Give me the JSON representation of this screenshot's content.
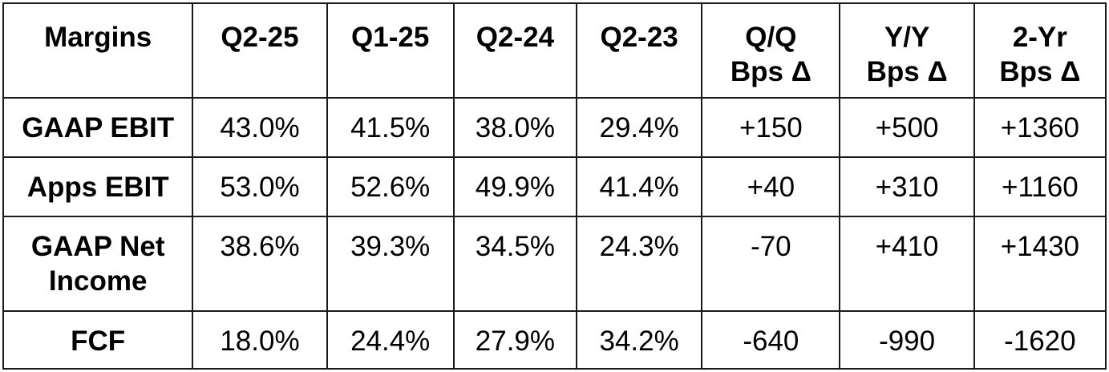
{
  "table": {
    "headers": [
      [
        "Margins"
      ],
      [
        "Q2-25"
      ],
      [
        "Q1-25"
      ],
      [
        "Q2-24"
      ],
      [
        "Q2-23"
      ],
      [
        "Q/Q",
        "Bps Δ"
      ],
      [
        "Y/Y",
        "Bps Δ"
      ],
      [
        "2-Yr",
        "Bps Δ"
      ]
    ],
    "rows": [
      {
        "label": [
          "GAAP EBIT"
        ],
        "cells": [
          "43.0%",
          "41.5%",
          "38.0%",
          "29.4%",
          "+150",
          "+500",
          "+1360"
        ]
      },
      {
        "label": [
          "Apps EBIT"
        ],
        "cells": [
          "53.0%",
          "52.6%",
          "49.9%",
          "41.4%",
          "+40",
          "+310",
          "+1160"
        ]
      },
      {
        "label": [
          "GAAP Net",
          "Income"
        ],
        "cells": [
          "38.6%",
          "39.3%",
          "34.5%",
          "24.3%",
          "-70",
          "+410",
          "+1430"
        ]
      },
      {
        "label": [
          "FCF"
        ],
        "cells": [
          "18.0%",
          "24.4%",
          "27.9%",
          "34.2%",
          "-640",
          "-990",
          "-1620"
        ]
      }
    ]
  }
}
